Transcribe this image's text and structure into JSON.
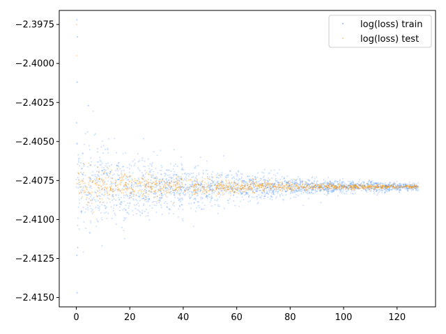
{
  "chart_data": {
    "type": "scatter",
    "title": "",
    "xlabel": "",
    "ylabel": "",
    "xlim": [
      -6.4,
      134.4
    ],
    "ylim": [
      -2.4156,
      -2.3966
    ],
    "x_ticks": [
      0,
      20,
      40,
      60,
      80,
      100,
      120
    ],
    "x_tick_labels": [
      "0",
      "20",
      "40",
      "60",
      "80",
      "100",
      "120"
    ],
    "y_ticks": [
      -2.3975,
      -2.4,
      -2.4025,
      -2.405,
      -2.4075,
      -2.41,
      -2.4125,
      -2.415
    ],
    "y_tick_labels": [
      "−2.3975",
      "−2.4000",
      "−2.4025",
      "−2.4050",
      "−2.4075",
      "−2.4100",
      "−2.4125",
      "−2.4150"
    ],
    "grid": false,
    "legend_position": "top-right",
    "series": [
      {
        "name": "log(loss) train",
        "color": "#1f77ff",
        "marker": "point",
        "x_range": [
          0,
          128
        ],
        "center": -2.4079,
        "spread_start": 0.0016,
        "spread_end": 0.00012,
        "outliers": [
          [
            0.2,
            -2.3972
          ],
          [
            0.4,
            -2.3983
          ],
          [
            0.3,
            -2.4012
          ],
          [
            0.1,
            -2.4038
          ],
          [
            0.5,
            -2.4118
          ],
          [
            0.2,
            -2.4123
          ],
          [
            0.3,
            -2.4147
          ],
          [
            4.5,
            -2.4027
          ]
        ]
      },
      {
        "name": "log(loss) test",
        "color": "#ff9900",
        "marker": "point",
        "x_range": [
          0,
          128
        ],
        "center": -2.4079,
        "spread_start": 0.0007,
        "spread_end": 5e-05,
        "outliers": [
          [
            0.1,
            -2.3975
          ],
          [
            0.2,
            -2.3995
          ]
        ]
      }
    ]
  }
}
